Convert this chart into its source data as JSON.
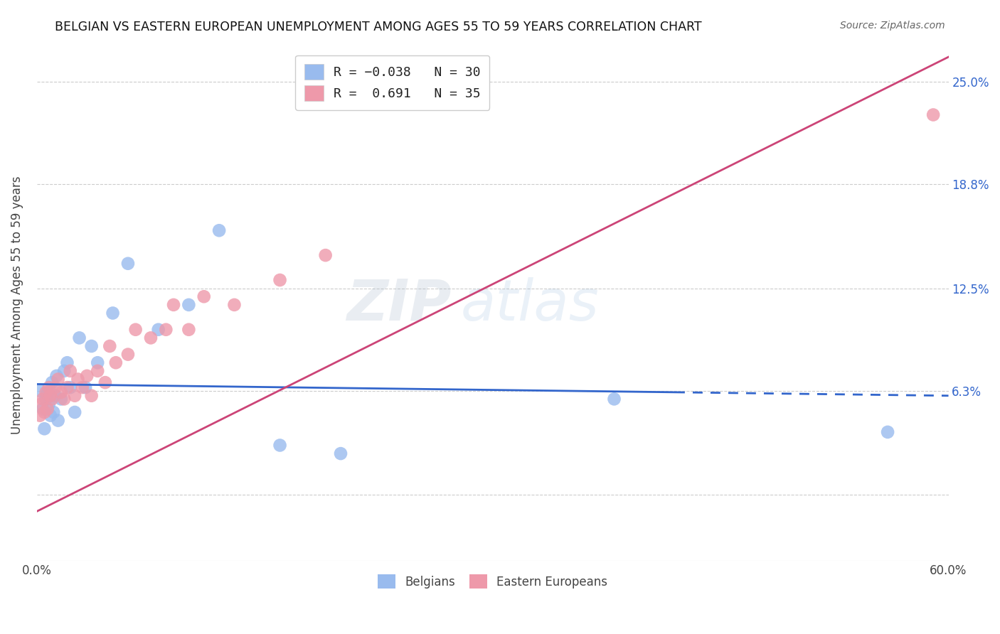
{
  "title": "BELGIAN VS EASTERN EUROPEAN UNEMPLOYMENT AMONG AGES 55 TO 59 YEARS CORRELATION CHART",
  "source": "Source: ZipAtlas.com",
  "ylabel": "Unemployment Among Ages 55 to 59 years",
  "xlabel": "",
  "xlim": [
    0.0,
    0.6
  ],
  "ylim": [
    -0.04,
    0.27
  ],
  "yticks": [
    0.0,
    0.063,
    0.125,
    0.188,
    0.25
  ],
  "ytick_labels": [
    "",
    "6.3%",
    "12.5%",
    "18.8%",
    "25.0%"
  ],
  "xticks": [
    0.0,
    0.1,
    0.2,
    0.3,
    0.4,
    0.5,
    0.6
  ],
  "xtick_labels": [
    "0.0%",
    "",
    "",
    "",
    "",
    "",
    "60.0%"
  ],
  "belgians_R": -0.038,
  "belgians_N": 30,
  "eastern_R": 0.691,
  "eastern_N": 35,
  "belgians_color": "#99bbee",
  "eastern_color": "#ee99aa",
  "belgians_line_color": "#3366cc",
  "eastern_line_color": "#cc4477",
  "watermark": "ZIPatlas",
  "belgians_x": [
    0.002,
    0.004,
    0.005,
    0.006,
    0.007,
    0.008,
    0.009,
    0.01,
    0.011,
    0.012,
    0.013,
    0.014,
    0.016,
    0.018,
    0.02,
    0.022,
    0.025,
    0.028,
    0.032,
    0.036,
    0.04,
    0.05,
    0.06,
    0.08,
    0.1,
    0.12,
    0.16,
    0.2,
    0.38,
    0.56
  ],
  "belgians_y": [
    0.063,
    0.052,
    0.04,
    0.058,
    0.062,
    0.055,
    0.048,
    0.068,
    0.05,
    0.06,
    0.072,
    0.045,
    0.058,
    0.075,
    0.08,
    0.065,
    0.05,
    0.095,
    0.065,
    0.09,
    0.08,
    0.11,
    0.14,
    0.1,
    0.115,
    0.16,
    0.03,
    0.025,
    0.058,
    0.038
  ],
  "eastern_x": [
    0.002,
    0.003,
    0.004,
    0.005,
    0.006,
    0.007,
    0.008,
    0.009,
    0.01,
    0.012,
    0.014,
    0.016,
    0.018,
    0.02,
    0.022,
    0.025,
    0.027,
    0.03,
    0.033,
    0.036,
    0.04,
    0.045,
    0.048,
    0.052,
    0.06,
    0.065,
    0.075,
    0.085,
    0.09,
    0.1,
    0.11,
    0.13,
    0.16,
    0.19,
    0.59
  ],
  "eastern_y": [
    0.048,
    0.055,
    0.058,
    0.05,
    0.062,
    0.052,
    0.065,
    0.06,
    0.058,
    0.065,
    0.07,
    0.062,
    0.058,
    0.065,
    0.075,
    0.06,
    0.07,
    0.065,
    0.072,
    0.06,
    0.075,
    0.068,
    0.09,
    0.08,
    0.085,
    0.1,
    0.095,
    0.1,
    0.115,
    0.1,
    0.12,
    0.115,
    0.13,
    0.145,
    0.23
  ],
  "belgians_line_x": [
    0.0,
    0.6
  ],
  "belgians_line_y": [
    0.067,
    0.06
  ],
  "eastern_line_x": [
    0.0,
    0.6
  ],
  "eastern_line_y": [
    -0.01,
    0.265
  ]
}
